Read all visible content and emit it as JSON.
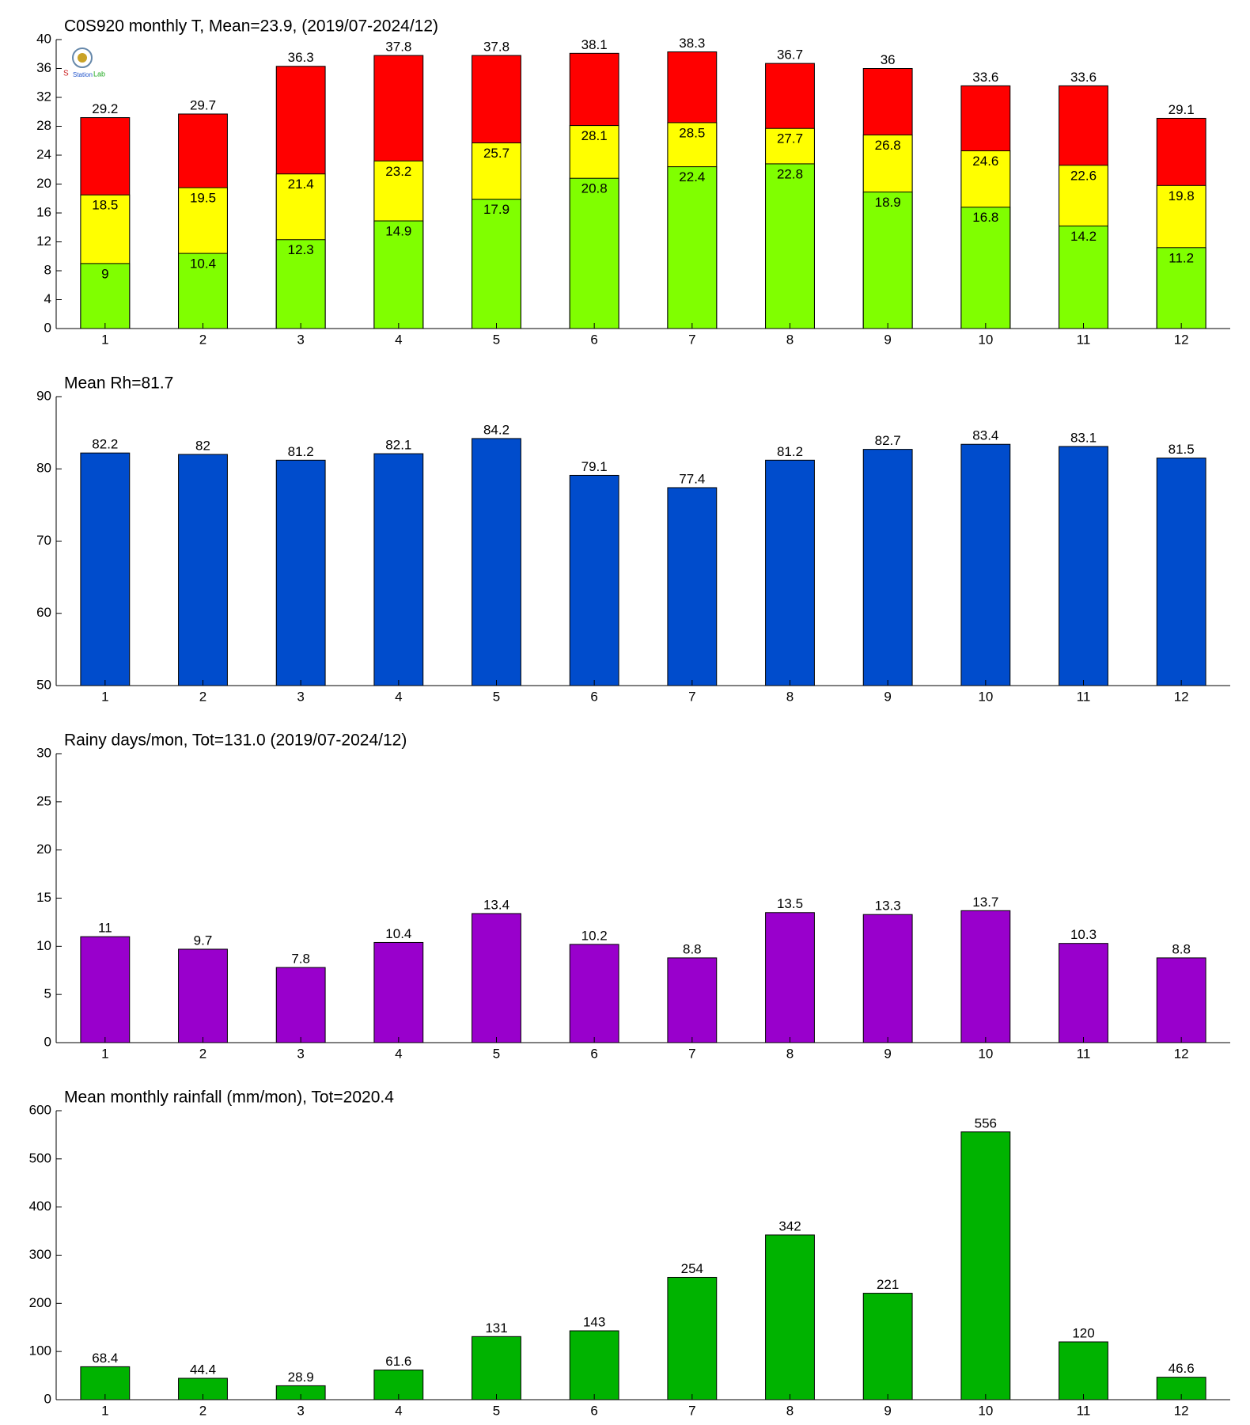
{
  "chart_data": [
    {
      "type": "bar",
      "title": "C0S920 monthly T, Mean=23.9, (2019/07-2024/12)",
      "categories": [
        "1",
        "2",
        "3",
        "4",
        "5",
        "6",
        "7",
        "8",
        "9",
        "10",
        "11",
        "12"
      ],
      "series": [
        {
          "color": "#80ff00",
          "values": [
            9,
            10.4,
            12.3,
            14.9,
            17.9,
            20.8,
            22.4,
            22.8,
            18.9,
            16.8,
            14.2,
            11.2
          ]
        },
        {
          "color": "#ffff00",
          "values": [
            18.5,
            19.5,
            21.4,
            23.2,
            25.7,
            28.1,
            28.5,
            27.7,
            26.8,
            24.6,
            22.6,
            19.8
          ]
        },
        {
          "color": "#ff0000",
          "values": [
            29.2,
            29.7,
            36.3,
            37.8,
            37.8,
            38.1,
            38.3,
            36.7,
            36,
            33.6,
            33.6,
            29.1
          ]
        }
      ],
      "ylim": [
        0,
        40
      ],
      "yticks": [
        0,
        4,
        8,
        12,
        16,
        20,
        24,
        28,
        32,
        36,
        40
      ]
    },
    {
      "type": "bar",
      "title": "Mean Rh=81.7",
      "categories": [
        "1",
        "2",
        "3",
        "4",
        "5",
        "6",
        "7",
        "8",
        "9",
        "10",
        "11",
        "12"
      ],
      "series": [
        {
          "color": "#004ccc",
          "values": [
            82.2,
            82,
            81.2,
            82.1,
            84.2,
            79.1,
            77.4,
            81.2,
            82.7,
            83.4,
            83.1,
            81.5
          ]
        }
      ],
      "ylim": [
        50,
        90
      ],
      "yticks": [
        50,
        60,
        70,
        80,
        90
      ]
    },
    {
      "type": "bar",
      "title": "Rainy days/mon, Tot=131.0 (2019/07-2024/12)",
      "categories": [
        "1",
        "2",
        "3",
        "4",
        "5",
        "6",
        "7",
        "8",
        "9",
        "10",
        "11",
        "12"
      ],
      "series": [
        {
          "color": "#9900cc",
          "values": [
            11,
            9.7,
            7.8,
            10.4,
            13.4,
            10.2,
            8.8,
            13.5,
            13.3,
            13.7,
            10.3,
            8.8
          ]
        }
      ],
      "ylim": [
        0,
        30
      ],
      "yticks": [
        0,
        5,
        10,
        15,
        20,
        25,
        30
      ]
    },
    {
      "type": "bar",
      "title": "Mean monthly rainfall (mm/mon), Tot=2020.4",
      "categories": [
        "1",
        "2",
        "3",
        "4",
        "5",
        "6",
        "7",
        "8",
        "9",
        "10",
        "11",
        "12"
      ],
      "series": [
        {
          "color": "#00b300",
          "values": [
            68.4,
            44.4,
            28.9,
            61.6,
            131,
            143,
            254,
            342,
            221,
            556,
            120,
            46.6
          ]
        }
      ],
      "ylim": [
        0,
        600
      ],
      "yticks": [
        0,
        100,
        200,
        300,
        400,
        500,
        600
      ]
    }
  ]
}
